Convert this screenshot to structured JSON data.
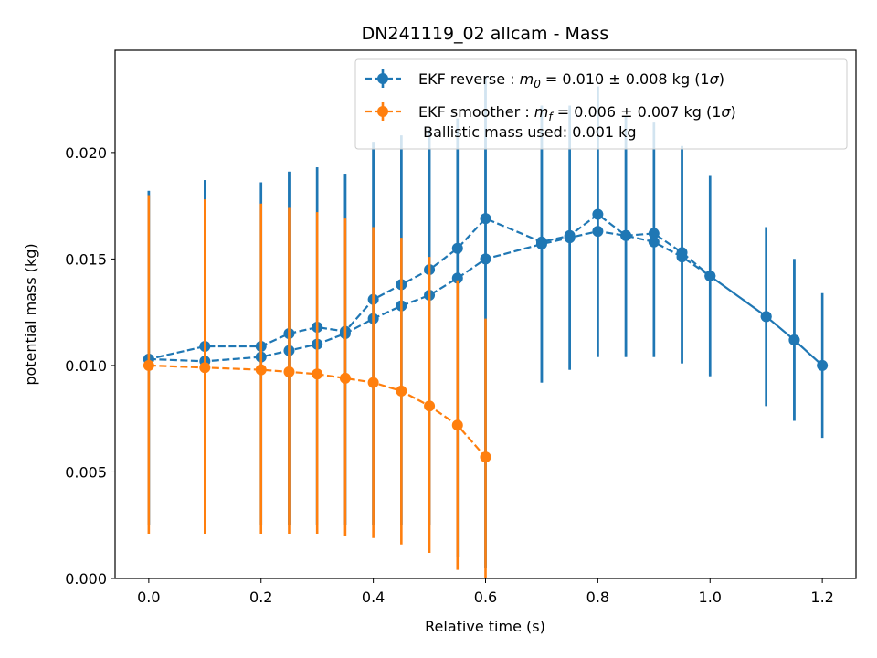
{
  "chart_data": {
    "type": "line",
    "title": "DN241119_02 allcam - Mass",
    "xlabel": "Relative time (s)",
    "ylabel": "potential mass (kg)",
    "xlim": [
      -0.06,
      1.26
    ],
    "ylim": [
      0.0,
      0.0248
    ],
    "xticks": [
      0.0,
      0.2,
      0.4,
      0.6,
      0.8,
      1.0,
      1.2
    ],
    "xtick_labels": [
      "0.0",
      "0.2",
      "0.4",
      "0.6",
      "0.8",
      "1.0",
      "1.2"
    ],
    "yticks": [
      0.0,
      0.005,
      0.01,
      0.015,
      0.02
    ],
    "ytick_labels": [
      "0.000",
      "0.005",
      "0.010",
      "0.015",
      "0.020"
    ],
    "grid": false,
    "legend_position": "top-right",
    "legend": {
      "entries": [
        {
          "prefix": "EKF reverse : ",
          "sym": "m",
          "sub": "0",
          "suffix": " =  0.010 ± 0.008 kg (1",
          "sigma": "σ",
          "close": ")"
        },
        {
          "prefix": "EKF smoother : ",
          "sym": "m",
          "sub": "f",
          "suffix": " =  0.006 ± 0.007 kg (1",
          "sigma": "σ",
          "close": ")"
        }
      ],
      "note": " Ballistic mass used: 0.001 kg"
    },
    "series": [
      {
        "name": "EKF reverse",
        "color": "#1f77b4",
        "x": [
          0.0,
          0.1,
          0.2,
          0.25,
          0.3,
          0.35,
          0.4,
          0.45,
          0.5,
          0.55,
          0.6,
          0.7,
          0.75,
          0.8,
          0.85,
          0.9,
          0.95,
          1.0,
          1.1,
          1.15,
          1.2,
          1.15,
          1.1,
          1.0,
          0.95,
          0.9,
          0.85,
          0.8,
          0.75,
          0.7,
          0.6,
          0.55,
          0.5,
          0.45,
          0.4,
          0.35,
          0.3,
          0.25,
          0.2,
          0.1,
          0.0
        ],
        "y": [
          0.0103,
          0.0102,
          0.0104,
          0.0107,
          0.011,
          0.0115,
          0.0122,
          0.0128,
          0.0133,
          0.0141,
          0.015,
          0.0157,
          0.016,
          0.0163,
          0.0161,
          0.0158,
          0.0151,
          0.0142,
          0.0123,
          0.0112,
          0.01,
          0.0112,
          0.0123,
          0.0142,
          0.0153,
          0.0162,
          0.0161,
          0.0171,
          0.0161,
          0.0158,
          0.0169,
          0.0155,
          0.0145,
          0.0138,
          0.0131,
          0.0116,
          0.0118,
          0.0115,
          0.0109,
          0.0109,
          0.0103
        ],
        "ylo": [
          0.0025,
          0.0025,
          0.0025,
          0.0025,
          0.0025,
          0.0025,
          0.0025,
          0.0025,
          0.0025,
          0.001,
          0.0005,
          0.0092,
          0.0098,
          0.0104,
          0.0104,
          0.0104,
          0.0101,
          0.0095,
          0.0081,
          0.0074,
          0.0066,
          0.0074,
          0.0081,
          0.0095,
          0.0101,
          0.0104,
          0.0104,
          0.0104,
          0.0098,
          0.0092,
          0.0005,
          0.001,
          0.0025,
          0.0025,
          0.0025,
          0.0025,
          0.0025,
          0.0025,
          0.0025,
          0.0025,
          0.0025
        ],
        "yhi": [
          0.0182,
          0.0187,
          0.0186,
          0.0191,
          0.0193,
          0.019,
          0.0205,
          0.0208,
          0.0211,
          0.0216,
          0.0236,
          0.0222,
          0.0222,
          0.0231,
          0.0217,
          0.0214,
          0.0203,
          0.0189,
          0.0165,
          0.015,
          0.0134,
          0.015,
          0.0165,
          0.0189,
          0.0203,
          0.0214,
          0.0217,
          0.0231,
          0.0222,
          0.0222,
          0.0236,
          0.0216,
          0.0211,
          0.0208,
          0.0205,
          0.019,
          0.0193,
          0.0191,
          0.0186,
          0.0187,
          0.0182
        ]
      },
      {
        "name": "EKF smoother",
        "color": "#ff7f0e",
        "x": [
          0.0,
          0.1,
          0.2,
          0.25,
          0.3,
          0.35,
          0.4,
          0.45,
          0.5,
          0.55,
          0.6
        ],
        "y": [
          0.01,
          0.0099,
          0.0098,
          0.0097,
          0.0096,
          0.0094,
          0.0092,
          0.0088,
          0.0081,
          0.0072,
          0.0057
        ],
        "ylo": [
          0.0021,
          0.0021,
          0.0021,
          0.0021,
          0.0021,
          0.002,
          0.0019,
          0.0016,
          0.0012,
          0.0004,
          0.0
        ],
        "yhi": [
          0.018,
          0.0178,
          0.0176,
          0.0174,
          0.0172,
          0.0169,
          0.0165,
          0.016,
          0.0151,
          0.014,
          0.0122
        ]
      }
    ]
  }
}
